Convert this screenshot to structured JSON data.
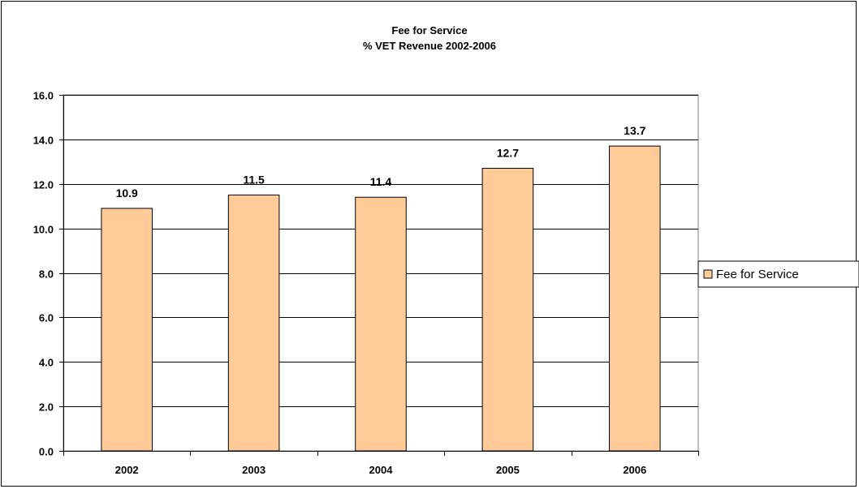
{
  "chart_data": {
    "type": "bar",
    "title": "Fee for Service",
    "subtitle": "% VET Revenue 2002-2006",
    "categories": [
      "2002",
      "2003",
      "2004",
      "2005",
      "2006"
    ],
    "series": [
      {
        "name": "Fee for Service",
        "values": [
          10.9,
          11.5,
          11.4,
          12.7,
          13.7
        ]
      }
    ],
    "data_labels": [
      "10.9",
      "11.5",
      "11.4",
      "12.7",
      "13.7"
    ],
    "y_ticks": [
      "0.0",
      "2.0",
      "4.0",
      "6.0",
      "8.0",
      "10.0",
      "12.0",
      "14.0",
      "16.0"
    ],
    "ylim": [
      0,
      16
    ],
    "xlabel": "",
    "ylabel": "",
    "grid": true,
    "legend_position": "right",
    "colors": {
      "bar_fill": "#FFCC99",
      "bar_stroke": "#000000",
      "grid": "#000000",
      "background": "#FFFFFF"
    }
  }
}
